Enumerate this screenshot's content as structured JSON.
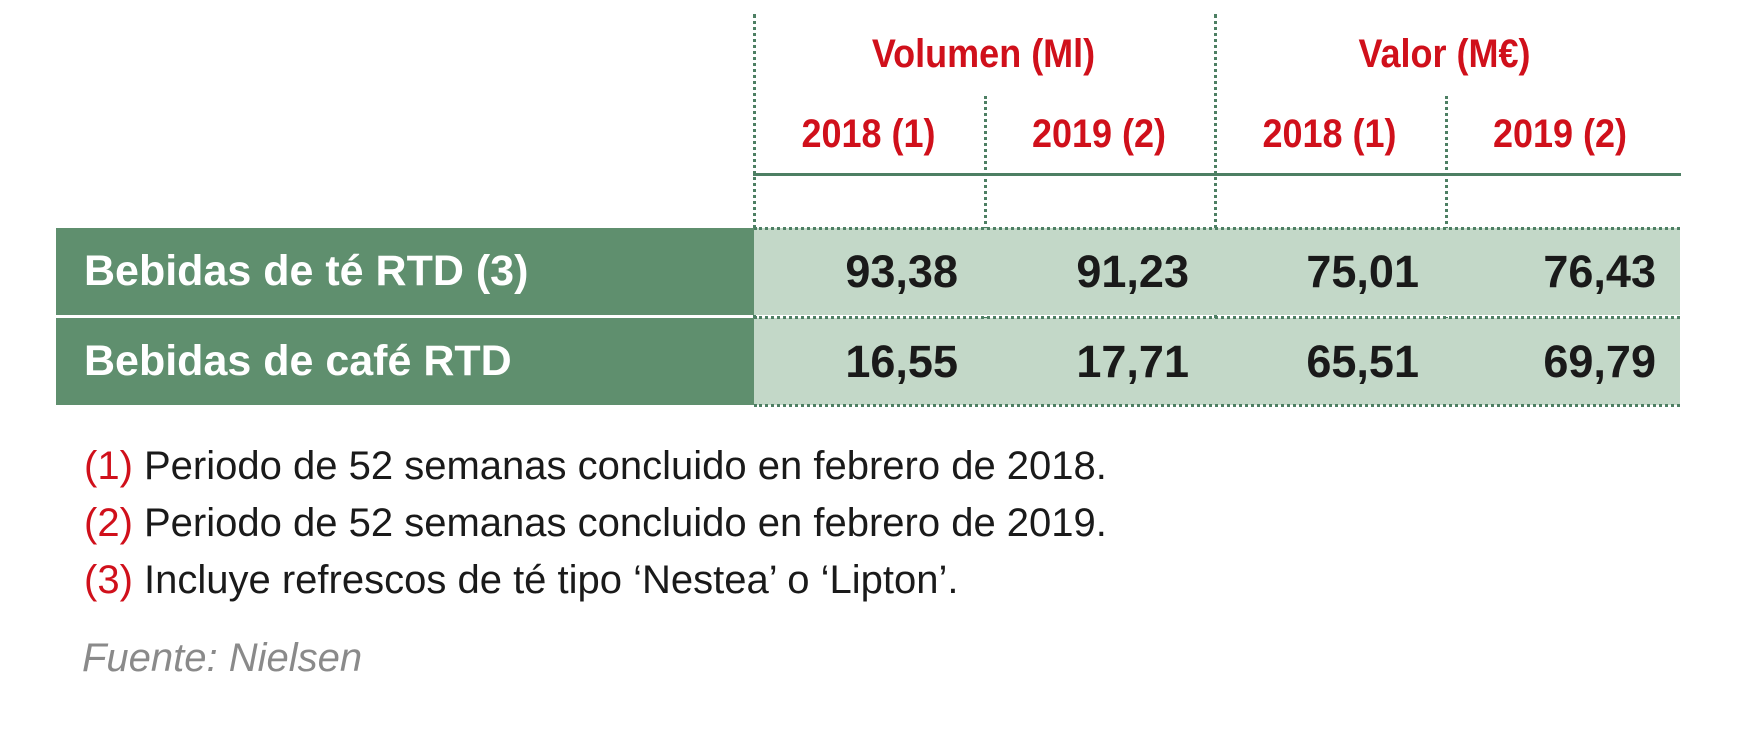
{
  "table": {
    "group_headers": [
      "Volumen (Ml)",
      "Valor (M€)"
    ],
    "year_headers": [
      "2018 (1)",
      "2019 (2)",
      "2018 (1)",
      "2019 (2)"
    ],
    "rows": [
      {
        "label": "Bebidas de té RTD (3)",
        "values": [
          "93,38",
          "91,23",
          "75,01",
          "76,43"
        ]
      },
      {
        "label": "Bebidas de café RTD",
        "values": [
          "16,55",
          "17,71",
          "65,51",
          "69,79"
        ]
      }
    ]
  },
  "notes": [
    {
      "num": "(1)",
      "text": " Periodo de 52 semanas concluido en febrero de 2018."
    },
    {
      "num": "(2)",
      "text": " Periodo de 52 semanas concluido en febrero de 2019."
    },
    {
      "num": "(3)",
      "text": " Incluye refrescos de té tipo ‘Nestea’ o ‘Lipton’."
    }
  ],
  "source": "Fuente: Nielsen",
  "colors": {
    "header_red": "#d0101b",
    "label_green": "#5f8f6e",
    "data_green": "#c3d8c8",
    "rule_green": "#4d7f63"
  }
}
